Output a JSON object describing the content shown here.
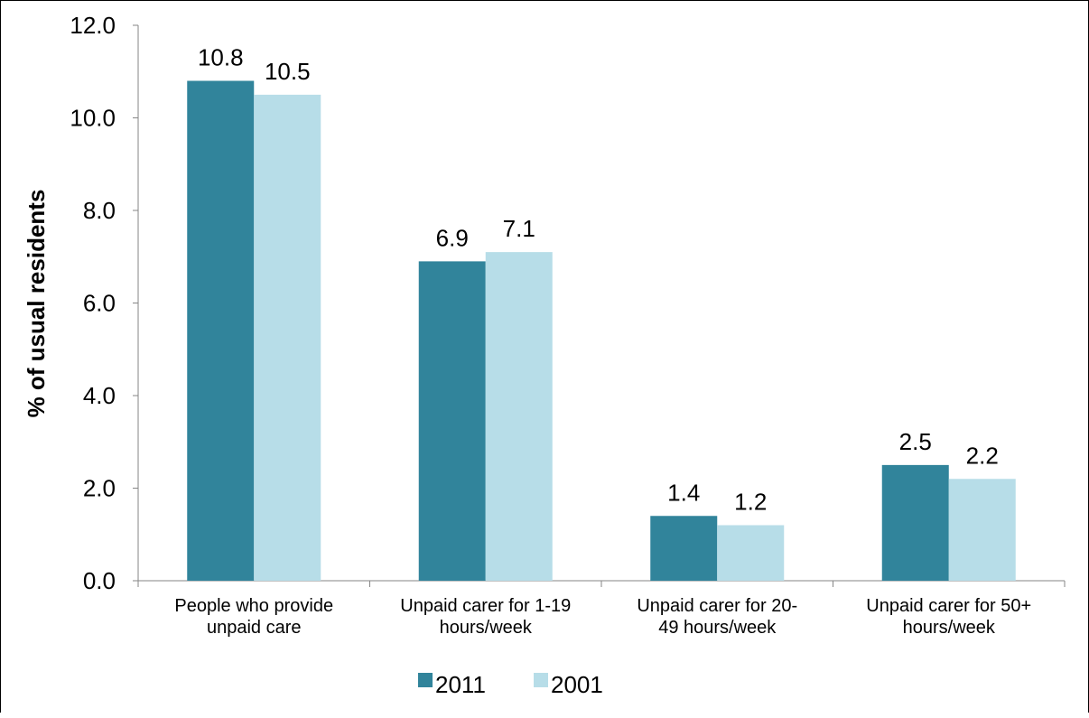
{
  "chart_data": {
    "type": "bar",
    "title": "",
    "xlabel": "",
    "ylabel": "% of usual residents",
    "ylim": [
      0,
      12
    ],
    "yticks": [
      "0.0",
      "2.0",
      "4.0",
      "6.0",
      "8.0",
      "10.0",
      "12.0"
    ],
    "grid": false,
    "legend_position": "bottom",
    "categories": [
      [
        "People who provide",
        "unpaid care"
      ],
      [
        "Unpaid carer for 1-19",
        "hours/week"
      ],
      [
        "Unpaid carer for 20-",
        "49 hours/week"
      ],
      [
        "Unpaid carer for 50+",
        "hours/week"
      ]
    ],
    "series": [
      {
        "name": "2011",
        "color": "#31849b",
        "values": [
          10.8,
          6.9,
          1.4,
          2.5
        ],
        "labels": [
          "10.8",
          "6.9",
          "1.4",
          "2.5"
        ]
      },
      {
        "name": "2001",
        "color": "#b7dde8",
        "values": [
          10.5,
          7.1,
          1.2,
          2.2
        ],
        "labels": [
          "10.5",
          "7.1",
          "1.2",
          "2.2"
        ]
      }
    ]
  }
}
